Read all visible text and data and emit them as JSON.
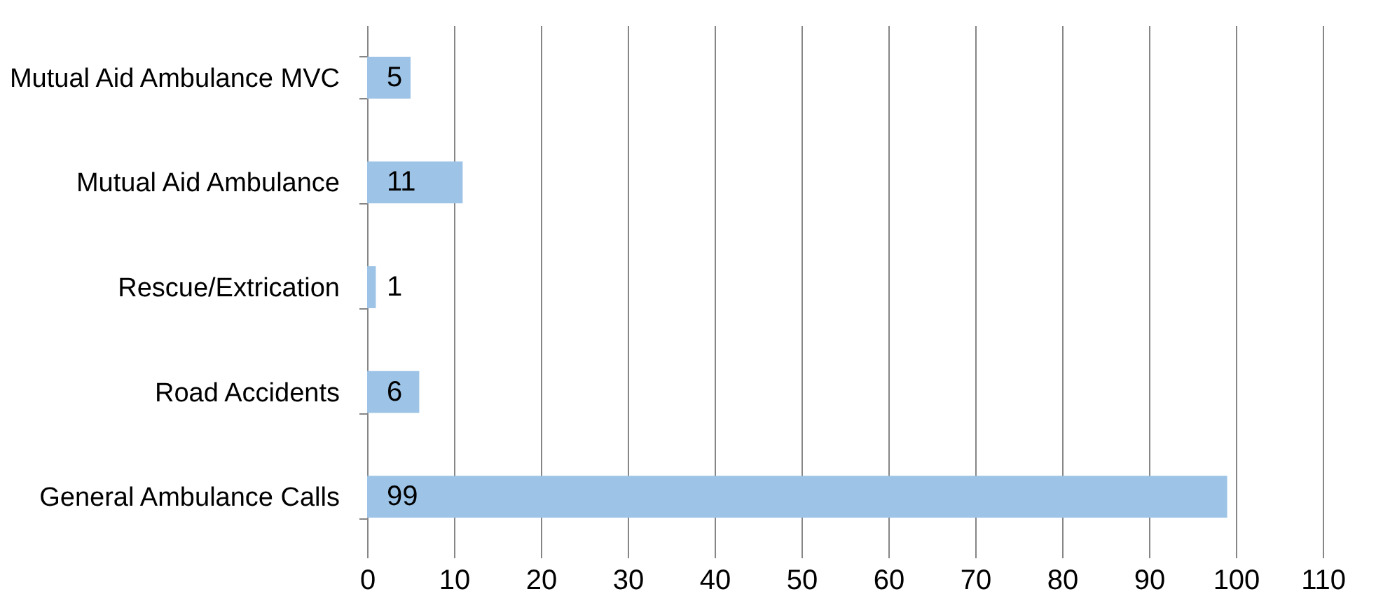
{
  "chart_data": {
    "type": "bar",
    "orientation": "horizontal",
    "categories": [
      "Mutual Aid Ambulance MVC",
      "Mutual Aid Ambulance",
      "Rescue/Extrication",
      "Road Accidents",
      "General Ambulance Calls"
    ],
    "values": [
      5,
      11,
      1,
      6,
      99
    ],
    "color": "#9dc3e6",
    "xlim": [
      0,
      110
    ],
    "xticks": [
      0,
      10,
      20,
      30,
      40,
      50,
      60,
      70,
      80,
      90,
      100,
      110
    ],
    "grid": "x",
    "data_labels": true
  }
}
